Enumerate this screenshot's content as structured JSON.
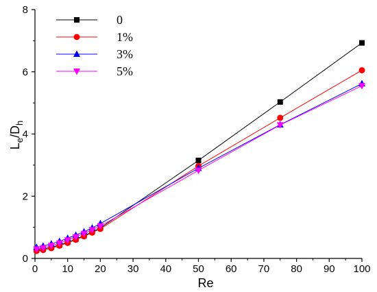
{
  "chart_data": {
    "type": "line",
    "title": "",
    "xlabel": "Re",
    "ylabel": {
      "main": "L",
      "sub1": "e",
      "mid": "/D",
      "sub2": "h"
    },
    "xlim": [
      0,
      100
    ],
    "ylim": [
      0,
      8
    ],
    "xticks": [
      0,
      10,
      20,
      30,
      40,
      50,
      60,
      70,
      80,
      90,
      100
    ],
    "yticks": [
      0,
      2,
      4,
      6,
      8
    ],
    "grid": false,
    "legend_position": "top-left",
    "x": [
      0.5,
      2.5,
      5,
      7.5,
      10,
      12.5,
      15,
      17.5,
      20,
      50,
      75,
      100
    ],
    "series": [
      {
        "name": "0",
        "color": "#000000",
        "marker": "square",
        "values": [
          0.27,
          0.3,
          0.36,
          0.43,
          0.52,
          0.62,
          0.73,
          0.85,
          0.98,
          3.15,
          5.03,
          6.93
        ]
      },
      {
        "name": "1%",
        "color": "#ff0000",
        "marker": "circle",
        "values": [
          0.24,
          0.27,
          0.33,
          0.41,
          0.5,
          0.6,
          0.71,
          0.83,
          0.95,
          2.97,
          4.52,
          6.05
        ]
      },
      {
        "name": "3%",
        "color": "#0000ff",
        "marker": "triangle-up",
        "values": [
          0.36,
          0.4,
          0.47,
          0.55,
          0.65,
          0.75,
          0.86,
          0.98,
          1.12,
          2.9,
          4.3,
          5.62
        ]
      },
      {
        "name": "5%",
        "color": "#ff00ff",
        "marker": "triangle-down",
        "values": [
          0.3,
          0.34,
          0.41,
          0.49,
          0.59,
          0.69,
          0.8,
          0.92,
          1.04,
          2.83,
          4.29,
          5.55
        ]
      }
    ]
  }
}
